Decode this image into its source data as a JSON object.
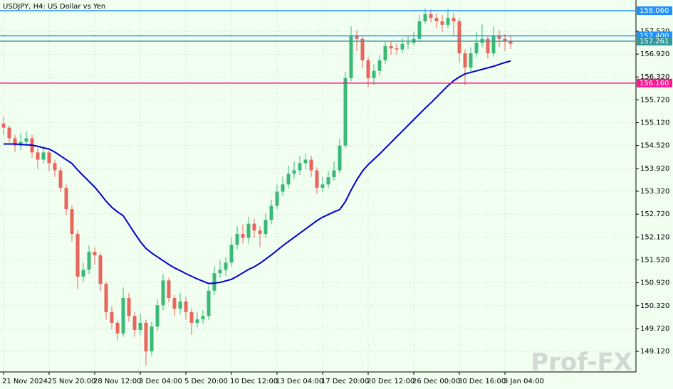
{
  "chart_data": {
    "type": "candlestick",
    "title": "USDJPY, H4:  US Dollar vs Yen",
    "watermark": "Prof-FX",
    "background": "#f0fff0",
    "grid": true,
    "up_color": "#3cb878",
    "down_color": "#e8665e",
    "ylim": [
      148.58,
      158.34
    ],
    "yticks": [
      {
        "value": 149.12,
        "label": "149.120"
      },
      {
        "value": 149.72,
        "label": "149.720"
      },
      {
        "value": 150.32,
        "label": "150.320"
      },
      {
        "value": 150.92,
        "label": "150.920"
      },
      {
        "value": 151.52,
        "label": "151.520"
      },
      {
        "value": 152.12,
        "label": "152.120"
      },
      {
        "value": 152.72,
        "label": "152.720"
      },
      {
        "value": 153.32,
        "label": "153.320"
      },
      {
        "value": 153.92,
        "label": "153.920"
      },
      {
        "value": 154.52,
        "label": "154.520"
      },
      {
        "value": 155.12,
        "label": "155.120"
      },
      {
        "value": 155.72,
        "label": "155.720"
      },
      {
        "value": 156.32,
        "label": "156.320"
      },
      {
        "value": 156.92,
        "label": "156.920"
      },
      {
        "value": 157.52,
        "label": "157.520"
      }
    ],
    "categories": [
      "21 Nov 2024",
      null,
      null,
      null,
      null,
      null,
      null,
      null,
      "25 Nov 20:00",
      null,
      null,
      null,
      null,
      null,
      null,
      null,
      "28 Nov 12:00",
      null,
      null,
      null,
      null,
      null,
      null,
      null,
      "3 Dec 04:00",
      null,
      null,
      null,
      null,
      null,
      null,
      null,
      "5 Dec 20:00",
      null,
      null,
      null,
      null,
      null,
      null,
      null,
      "10 Dec 12:00",
      null,
      null,
      null,
      null,
      null,
      null,
      null,
      "13 Dec 04:00",
      null,
      null,
      null,
      null,
      null,
      null,
      null,
      "17 Dec 20:00",
      null,
      null,
      null,
      null,
      null,
      null,
      null,
      "20 Dec 12:00",
      null,
      null,
      null,
      null,
      null,
      null,
      null,
      "26 Dec 00:00",
      null,
      null,
      null,
      null,
      null,
      null,
      null,
      "30 Dec 16:00",
      null,
      null,
      null,
      null,
      null,
      null,
      null,
      "3 Jan 04:00",
      null
    ],
    "open": [
      155.1,
      154.99,
      154.71,
      154.52,
      154.62,
      154.71,
      154.34,
      154.15,
      154.34,
      154.06,
      153.87,
      153.41,
      152.85,
      152.2,
      151.08,
      151.26,
      151.73,
      151.64,
      150.89,
      150.15,
      149.87,
      149.59,
      150.52,
      150.05,
      149.68,
      149.87,
      149.12,
      149.77,
      150.33,
      150.98,
      150.52,
      150.24,
      150.43,
      150.15,
      149.87,
      149.96,
      150.05,
      150.71,
      151.17,
      151.26,
      151.45,
      151.92,
      152.2,
      152.1,
      152.47,
      152.29,
      152.2,
      152.57,
      152.94,
      153.31,
      153.5,
      153.78,
      153.87,
      154.06,
      154.15,
      153.87,
      153.41,
      153.5,
      153.69,
      153.87,
      154.52,
      156.29,
      157.41,
      157.32,
      156.76,
      156.29,
      156.48,
      156.76,
      157.13,
      157.07,
      157.04,
      157.19,
      157.22,
      157.32,
      157.78,
      157.97,
      157.87,
      157.78,
      157.69,
      157.87,
      157.78,
      156.94,
      156.57,
      156.94,
      157.22,
      157.32,
      156.94,
      157.41,
      157.32,
      157.26
    ],
    "high": [
      155.28,
      155.05,
      154.8,
      154.85,
      154.9,
      154.8,
      154.45,
      154.5,
      154.45,
      154.15,
      153.95,
      153.5,
      152.95,
      152.3,
      151.45,
      151.9,
      151.85,
      151.7,
      150.95,
      150.3,
      149.95,
      150.8,
      150.65,
      150.15,
      150.1,
      149.95,
      149.9,
      150.5,
      151.15,
      151.05,
      150.6,
      150.65,
      150.55,
      150.25,
      150.15,
      150.2,
      150.85,
      151.35,
      151.5,
      151.6,
      152.1,
      152.4,
      152.45,
      152.65,
      152.6,
      152.4,
      152.75,
      153.1,
      153.5,
      153.7,
      154.0,
      154.1,
      154.25,
      154.3,
      154.25,
      153.95,
      153.7,
      153.85,
      154.1,
      154.7,
      156.45,
      157.65,
      157.55,
      157.4,
      156.85,
      156.65,
      156.9,
      157.25,
      157.25,
      157.2,
      157.35,
      157.4,
      157.5,
      157.95,
      158.12,
      158.1,
      158.0,
      157.95,
      158.1,
      158.0,
      157.85,
      157.05,
      157.1,
      157.5,
      157.7,
      157.4,
      157.65,
      157.55,
      157.45,
      157.4
    ],
    "low": [
      154.8,
      154.6,
      154.35,
      154.4,
      154.5,
      154.2,
      153.9,
      154.05,
      153.85,
      153.7,
      153.3,
      152.7,
      152.0,
      150.75,
      150.95,
      151.15,
      151.4,
      150.7,
      149.95,
      149.7,
      149.4,
      149.5,
      149.9,
      149.5,
      149.55,
      148.75,
      149.0,
      149.65,
      150.2,
      150.4,
      150.05,
      150.1,
      149.95,
      149.55,
      149.75,
      149.85,
      149.95,
      150.6,
      151.05,
      151.1,
      151.35,
      151.8,
      151.95,
      151.95,
      152.1,
      151.85,
      152.1,
      152.45,
      152.85,
      153.2,
      153.4,
      153.65,
      153.75,
      153.9,
      153.7,
      153.25,
      153.3,
      153.4,
      153.6,
      153.8,
      154.45,
      156.2,
      157.0,
      156.55,
      156.05,
      156.1,
      156.35,
      156.65,
      156.9,
      156.9,
      156.95,
      157.05,
      157.15,
      157.25,
      157.7,
      157.75,
      157.6,
      157.5,
      157.6,
      157.4,
      156.7,
      156.1,
      156.45,
      156.85,
      157.1,
      156.8,
      156.85,
      157.1,
      157.0,
      157.05
    ],
    "close": [
      154.99,
      154.71,
      154.52,
      154.62,
      154.71,
      154.34,
      154.15,
      154.34,
      154.06,
      153.87,
      153.41,
      152.85,
      152.2,
      151.08,
      151.26,
      151.73,
      151.64,
      150.89,
      150.15,
      149.87,
      149.59,
      150.52,
      150.05,
      149.68,
      149.87,
      149.12,
      149.77,
      150.33,
      150.98,
      150.52,
      150.24,
      150.43,
      150.15,
      149.87,
      149.96,
      150.05,
      150.71,
      151.17,
      151.26,
      151.45,
      151.92,
      152.2,
      152.1,
      152.47,
      152.29,
      152.2,
      152.57,
      152.94,
      153.31,
      153.5,
      153.78,
      153.87,
      154.06,
      154.15,
      153.87,
      153.41,
      153.5,
      153.69,
      153.87,
      154.52,
      156.29,
      157.41,
      157.32,
      156.76,
      156.29,
      156.48,
      156.76,
      157.13,
      157.07,
      157.04,
      157.19,
      157.22,
      157.32,
      157.78,
      157.97,
      157.87,
      157.78,
      157.69,
      157.87,
      157.78,
      156.94,
      156.57,
      156.94,
      157.22,
      157.32,
      156.94,
      157.41,
      157.32,
      157.26,
      157.19
    ],
    "ma": {
      "color": "#0000cd",
      "values": [
        154.56,
        154.56,
        154.56,
        154.55,
        154.54,
        154.53,
        154.5,
        154.46,
        154.43,
        154.35,
        154.25,
        154.15,
        154.05,
        153.88,
        153.73,
        153.58,
        153.43,
        153.25,
        153.06,
        152.9,
        152.78,
        152.68,
        152.45,
        152.22,
        152.0,
        151.82,
        151.7,
        151.6,
        151.5,
        151.4,
        151.31,
        151.24,
        151.16,
        151.09,
        151.02,
        150.96,
        150.9,
        150.91,
        150.93,
        150.97,
        151.01,
        151.09,
        151.18,
        151.27,
        151.34,
        151.43,
        151.54,
        151.65,
        151.77,
        151.89,
        152.0,
        152.11,
        152.22,
        152.33,
        152.44,
        152.55,
        152.64,
        152.71,
        152.78,
        152.84,
        153.05,
        153.35,
        153.62,
        153.85,
        154.02,
        154.16,
        154.3,
        154.45,
        154.6,
        154.75,
        154.9,
        155.05,
        155.2,
        155.35,
        155.5,
        155.64,
        155.79,
        155.94,
        156.09,
        156.22,
        156.32,
        156.4,
        156.44,
        156.48,
        156.52,
        156.56,
        156.6,
        156.65,
        156.7,
        156.74
      ]
    },
    "levels": [
      {
        "value": 158.06,
        "label": "158.060",
        "color": "#1e90ff"
      },
      {
        "value": 157.4,
        "label": "157.400",
        "color": "#1e90ff"
      },
      {
        "value": 157.261,
        "label": "157.261",
        "color": "#2e9a9a"
      },
      {
        "value": 156.16,
        "label": "156.160",
        "color": "#ff1493"
      }
    ]
  }
}
